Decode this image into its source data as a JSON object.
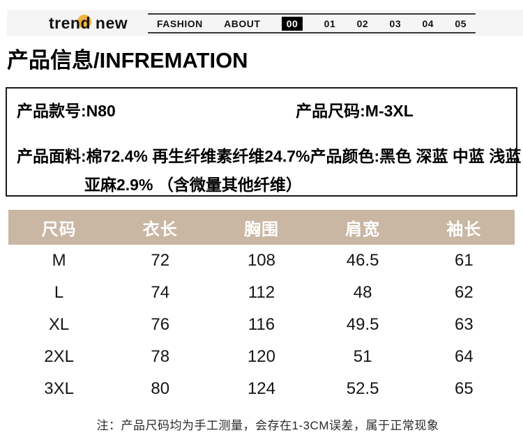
{
  "header": {
    "logo": {
      "part1": "tren",
      "accent_letter": "d",
      "part2": " new"
    },
    "nav_items": [
      {
        "label": "FASHION",
        "active": false
      },
      {
        "label": "ABOUT",
        "active": false
      },
      {
        "label": "00",
        "active": true
      },
      {
        "label": "01",
        "active": false
      },
      {
        "label": "02",
        "active": false
      },
      {
        "label": "03",
        "active": false
      },
      {
        "label": "04",
        "active": false
      },
      {
        "label": "05",
        "active": false
      }
    ]
  },
  "page_title": "产品信息/INFREMATION",
  "info_box": {
    "model_label": "产品款号:N80",
    "size_label": "产品尺码:M-3XL",
    "fabric_line1": "产品面料:棉72.4%  再生纤维素纤维24.7%",
    "color_label": "产品颜色:黑色 深蓝 中蓝 浅蓝",
    "fabric_line2": "亚麻2.9%  （含微量其他纤维）"
  },
  "size_table": {
    "headers": [
      "尺码",
      "衣长",
      "胸围",
      "肩宽",
      "袖长"
    ],
    "rows": [
      [
        "M",
        "72",
        "108",
        "46.5",
        "61"
      ],
      [
        "L",
        "74",
        "112",
        "48",
        "62"
      ],
      [
        "XL",
        "76",
        "116",
        "49.5",
        "63"
      ],
      [
        "2XL",
        "78",
        "120",
        "51",
        "64"
      ],
      [
        "3XL",
        "80",
        "124",
        "52.5",
        "65"
      ]
    ]
  },
  "note": "注：产品尺码均为手工测量，会存在1-3CM误差，属于正常现象",
  "colors": {
    "table_header_bg": "#c9b6a3",
    "header_bar_bg": "#f5f5f5",
    "nav_active_bg": "#000000",
    "nav_line": "#3a3a3a",
    "logo_dot": "#f2b33e"
  }
}
